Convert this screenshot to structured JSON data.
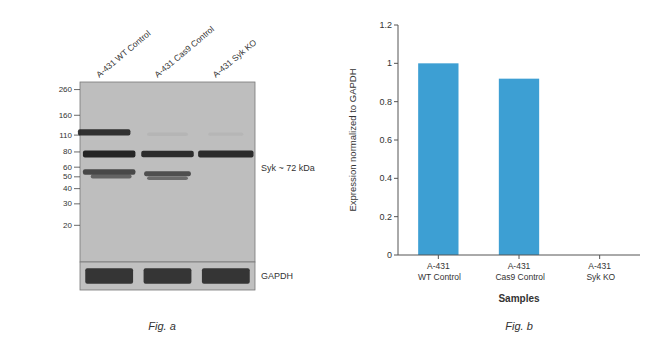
{
  "chart_data": [
    {
      "type": "blot",
      "title": "Fig. a",
      "categories": [
        "A-431 WT Control",
        "A-431 Cas9 Control",
        "A-431 Syk KO"
      ],
      "log": "y",
      "ylim": [
        10,
        300
      ],
      "yticks": [
        260,
        160,
        110,
        80,
        60,
        50,
        40,
        30,
        20
      ],
      "annotations": [
        "Syk ~ 72 kDa",
        "GAPDH"
      ]
    },
    {
      "type": "bar",
      "title": "Fig. b",
      "categories": [
        "A-431 WT Control",
        "A-431 Cas9 Control",
        "A-431 Syk KO"
      ],
      "values": [
        1.0,
        0.92,
        0.0
      ],
      "color": "#3d9fd3",
      "xlabel": "Samples",
      "ylabel": "Expression normalized to GAPDH",
      "ylim": [
        0,
        1.2
      ],
      "yticks": [
        0,
        0.2,
        0.4,
        0.6,
        0.8,
        1,
        1.2
      ]
    }
  ]
}
